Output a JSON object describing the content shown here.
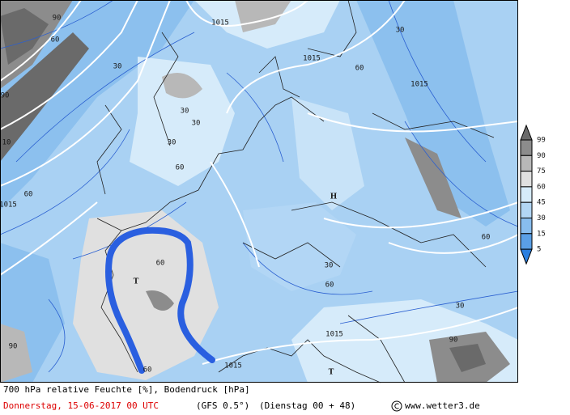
{
  "isobar_labels": [
    "1015",
    "1015",
    "1015",
    "1015",
    "1015",
    "1015"
  ],
  "humidity_labels": [
    "30",
    "30",
    "30",
    "30",
    "30",
    "30",
    "30",
    "60",
    "60",
    "60",
    "60",
    "60",
    "60",
    "60",
    "60",
    "90",
    "90",
    "90",
    "90",
    "10"
  ],
  "pressure_centers": [
    "T",
    "T",
    "H"
  ],
  "legend": {
    "levels": [
      99,
      90,
      75,
      60,
      45,
      30,
      15,
      5
    ],
    "colors": [
      "#6a6a6a",
      "#8c8c8c",
      "#b8b8b8",
      "#e0e0e0",
      "#d6ebfa",
      "#b2d6f5",
      "#88bdee",
      "#5a9fe6",
      "#2a7fe0"
    ]
  },
  "footer": {
    "title": "700 hPa relative Feuchte [%], Bodendruck [hPa]",
    "date": "Donnerstag, 15-06-2017  00 UTC",
    "model": "(GFS 0.5°)",
    "run": "(Dienstag 00 + 48)",
    "credit": "www.wetter3.de"
  }
}
